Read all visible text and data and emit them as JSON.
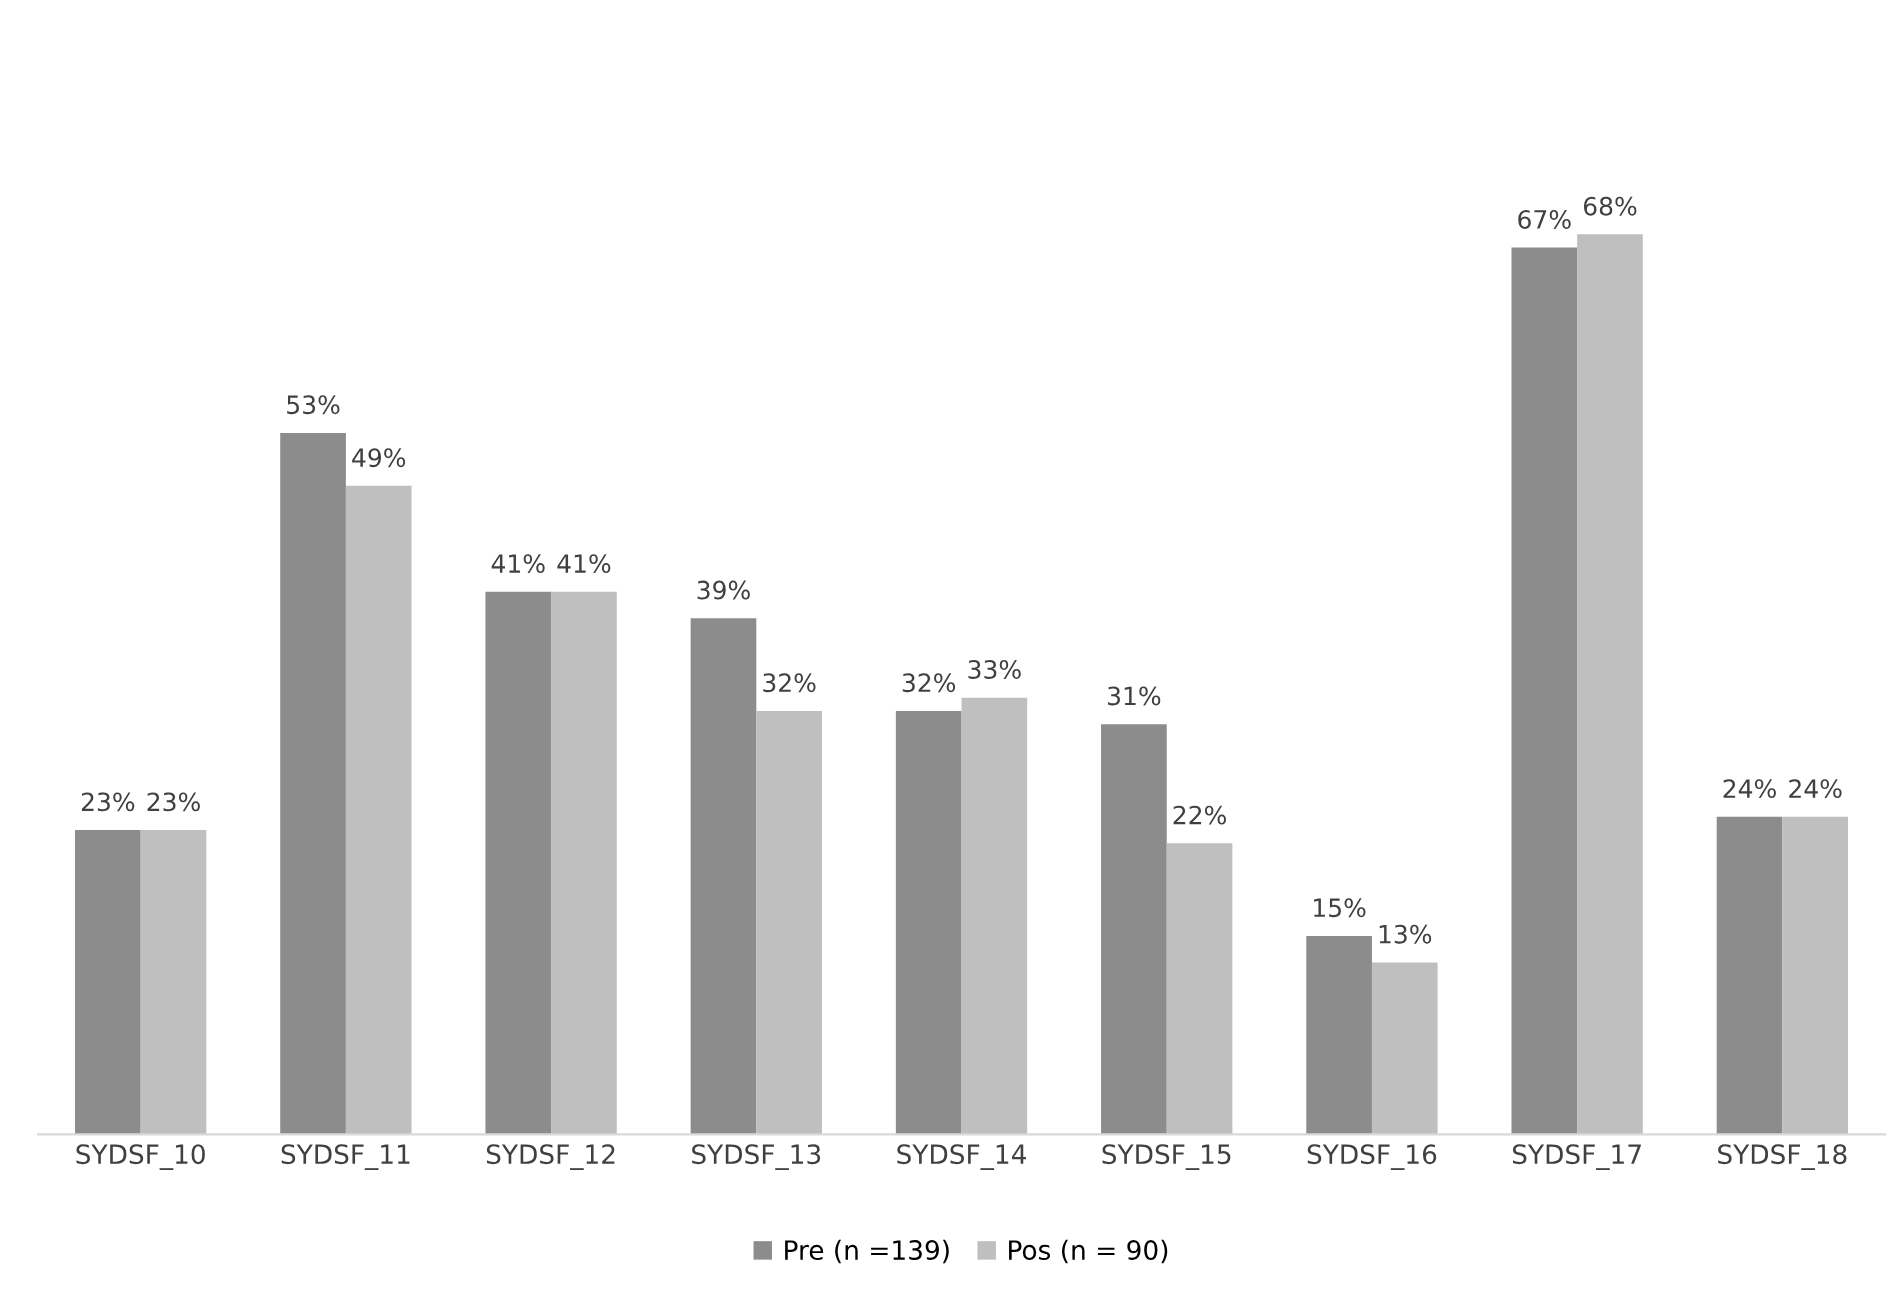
{
  "chart_data": {
    "type": "bar",
    "categories": [
      "SYDSF_10",
      "SYDSF_11",
      "SYDSF_12",
      "SYDSF_13",
      "SYDSF_14",
      "SYDSF_15",
      "SYDSF_16",
      "SYDSF_17",
      "SYDSF_18"
    ],
    "series": [
      {
        "name": "Pre (n =139)",
        "color": "#8c8c8c",
        "values": [
          23,
          53,
          41,
          39,
          32,
          31,
          15,
          67,
          24
        ],
        "value_labels": [
          "23%",
          "53%",
          "41%",
          "39%",
          "32%",
          "31%",
          "15%",
          "67%",
          "24%"
        ]
      },
      {
        "name": "Pos (n = 90)",
        "color": "#bfbfbf",
        "values": [
          23,
          49,
          41,
          32,
          33,
          22,
          13,
          68,
          24
        ],
        "value_labels": [
          "23%",
          "49%",
          "41%",
          "32%",
          "33%",
          "22%",
          "13%",
          "68%",
          "24%"
        ]
      }
    ],
    "legend": "bottom",
    "grid": false,
    "tick_labels": "x"
  }
}
